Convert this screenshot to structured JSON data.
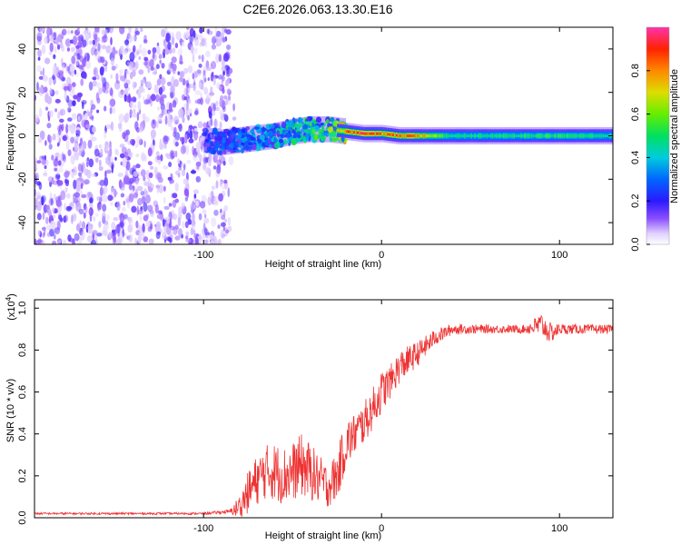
{
  "title": "C2E6.2026.063.13.30.E16",
  "colors": {
    "signal": "#ee3333",
    "axis": "#000000"
  },
  "chart_data": [
    {
      "type": "heatmap",
      "name": "spectrogram",
      "xlabel": "Height of straight line (km)",
      "ylabel": "Frequency (Hz)",
      "xlim": [
        -195,
        130
      ],
      "ylim": [
        -50,
        50
      ],
      "xticks": [
        -100,
        0,
        100
      ],
      "xtick_labels": [
        "-100",
        "0",
        "100"
      ],
      "yticks": [
        -40,
        -20,
        0,
        20,
        40
      ],
      "ytick_labels": [
        "-40",
        "-20",
        "0",
        "20",
        "40"
      ],
      "colorbar": {
        "label": "Normalized spectral amplitude",
        "range": [
          0,
          1
        ],
        "ticks": [
          0.0,
          0.2,
          0.4,
          0.6,
          0.8
        ],
        "tick_labels": [
          "0.0",
          "0.2",
          "0.4",
          "0.6",
          "0.8"
        ]
      },
      "noise_region_km": [
        -195,
        -85
      ],
      "signal_track": [
        {
          "x": -100,
          "f": -2,
          "amp": 0.25
        },
        {
          "x": -90,
          "f": -3,
          "amp": 0.3
        },
        {
          "x": -80,
          "f": -2,
          "amp": 0.35
        },
        {
          "x": -70,
          "f": -1,
          "amp": 0.35
        },
        {
          "x": -60,
          "f": 0,
          "amp": 0.4
        },
        {
          "x": -50,
          "f": 2,
          "amp": 0.45
        },
        {
          "x": -40,
          "f": 3,
          "amp": 0.5
        },
        {
          "x": -30,
          "f": 3,
          "amp": 0.55
        },
        {
          "x": -20,
          "f": 2,
          "amp": 0.85
        },
        {
          "x": -10,
          "f": 1,
          "amp": 0.95
        },
        {
          "x": 0,
          "f": 1,
          "amp": 0.85
        },
        {
          "x": 10,
          "f": 0,
          "amp": 0.9
        },
        {
          "x": 20,
          "f": 0,
          "amp": 0.8
        },
        {
          "x": 40,
          "f": 0,
          "amp": 0.5
        },
        {
          "x": 60,
          "f": 0,
          "amp": 0.5
        },
        {
          "x": 90,
          "f": 0,
          "amp": 0.55
        },
        {
          "x": 130,
          "f": 0,
          "amp": 0.5
        }
      ]
    },
    {
      "type": "line",
      "name": "snr",
      "xlabel": "Height of straight line (km)",
      "ylabel": "SNR (10 * v/v)",
      "yscale_label": "(x10",
      "yscale_exponent": "4",
      "xlim": [
        -195,
        130
      ],
      "ylim": [
        0,
        1.04
      ],
      "xticks": [
        -100,
        0,
        100
      ],
      "xtick_labels": [
        "-100",
        "0",
        "100"
      ],
      "yticks": [
        0.0,
        0.2,
        0.4,
        0.6,
        0.8,
        1.0
      ],
      "ytick_labels": [
        "0.0",
        "0.2",
        "0.4",
        "0.6",
        "0.8",
        "1.0"
      ],
      "series": [
        {
          "name": "SNR",
          "x": [
            -195,
            -100,
            -85,
            -80,
            -75,
            -70,
            -65,
            -60,
            -55,
            -50,
            -45,
            -40,
            -35,
            -30,
            -25,
            -20,
            -15,
            -10,
            -5,
            0,
            5,
            10,
            15,
            20,
            25,
            30,
            40,
            60,
            80,
            90,
            95,
            100,
            130
          ],
          "y": [
            0.02,
            0.02,
            0.03,
            0.05,
            0.12,
            0.18,
            0.22,
            0.22,
            0.2,
            0.22,
            0.25,
            0.22,
            0.18,
            0.15,
            0.2,
            0.35,
            0.4,
            0.45,
            0.52,
            0.6,
            0.65,
            0.72,
            0.75,
            0.78,
            0.82,
            0.86,
            0.9,
            0.9,
            0.9,
            0.92,
            0.88,
            0.9,
            0.9
          ],
          "noise": [
            0.005,
            0.005,
            0.01,
            0.06,
            0.1,
            0.12,
            0.13,
            0.14,
            0.14,
            0.14,
            0.15,
            0.14,
            0.12,
            0.1,
            0.12,
            0.12,
            0.1,
            0.1,
            0.1,
            0.1,
            0.08,
            0.08,
            0.07,
            0.06,
            0.05,
            0.04,
            0.025,
            0.02,
            0.02,
            0.06,
            0.05,
            0.025,
            0.02
          ]
        }
      ]
    }
  ]
}
